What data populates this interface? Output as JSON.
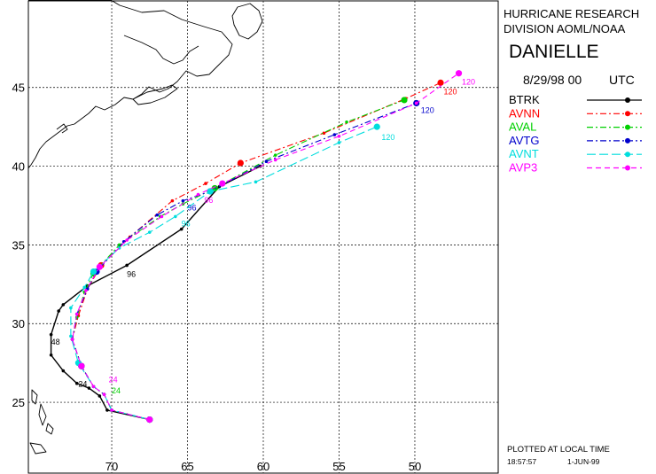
{
  "header": {
    "org_line1": "HURRICANE RESEARCH",
    "org_line2": "DIVISION AOML/NOAA",
    "storm_name": "DANIELLE",
    "date": "8/29/98 00",
    "tz": "UTC"
  },
  "footer": {
    "plotted_note": "PLOTTED AT LOCAL TIME",
    "time": "18:57:57",
    "date": "1-JUN-99"
  },
  "chart_data": {
    "type": "line",
    "title": "",
    "xlabel": "",
    "ylabel": "",
    "xlim": [
      75.5,
      44.5
    ],
    "ylim": [
      20.5,
      50.5
    ],
    "x_unit": "degrees west longitude",
    "y_unit": "degrees north latitude",
    "x_ticks": [
      70,
      65,
      60,
      55,
      50
    ],
    "y_ticks": [
      25,
      30,
      35,
      40,
      45
    ],
    "grid": true,
    "legend_position": "right-panel",
    "series": [
      {
        "name": "BTRK",
        "color": "#000000",
        "dash": "solid",
        "points": [
          [
            67.5,
            23.9
          ],
          [
            70.3,
            24.5
          ],
          [
            70.8,
            25.4
          ],
          [
            71.5,
            25.9
          ],
          [
            72.3,
            26.2
          ],
          [
            73.2,
            27.0
          ],
          [
            74.0,
            28.0
          ],
          [
            74.0,
            29.3
          ],
          [
            73.5,
            30.8
          ],
          [
            73.2,
            31.2
          ],
          [
            71.6,
            32.4
          ],
          [
            69.0,
            33.7
          ],
          [
            65.4,
            36.0
          ],
          [
            62.9,
            38.7
          ],
          [
            60.2,
            40.0
          ]
        ],
        "labels": [
          {
            "text": "24",
            "lon": 72.2,
            "lat": 26.2
          },
          {
            "text": "48",
            "lon": 74.0,
            "lat": 28.9
          },
          {
            "text": "96",
            "lon": 69.0,
            "lat": 33.2
          }
        ]
      },
      {
        "name": "AVNN",
        "color": "#ff0000",
        "dash": "dashdot",
        "points": [
          [
            67.5,
            23.9
          ],
          [
            70.0,
            24.5
          ],
          [
            70.5,
            25.5
          ],
          [
            71.2,
            26.0
          ],
          [
            72.0,
            27.3
          ],
          [
            72.6,
            29.0
          ],
          [
            72.2,
            30.5
          ],
          [
            71.6,
            32.2
          ],
          [
            70.7,
            33.7
          ],
          [
            68.8,
            35.5
          ],
          [
            66.0,
            37.8
          ],
          [
            63.8,
            38.9
          ],
          [
            61.5,
            40.2
          ],
          [
            56.0,
            42.1
          ],
          [
            50.6,
            44.3
          ],
          [
            48.3,
            45.3
          ]
        ],
        "labels": [
          {
            "text": "120",
            "lon": 48.1,
            "lat": 44.8
          }
        ]
      },
      {
        "name": "AVAL",
        "color": "#00d000",
        "dash": "dashdot",
        "points": [
          [
            67.5,
            23.9
          ],
          [
            70.0,
            24.5
          ],
          [
            70.5,
            25.5
          ],
          [
            71.2,
            26.0
          ],
          [
            72.0,
            27.3
          ],
          [
            72.6,
            29.0
          ],
          [
            72.3,
            30.4
          ],
          [
            71.8,
            32.0
          ],
          [
            71.2,
            33.2
          ],
          [
            69.5,
            35.0
          ],
          [
            66.8,
            36.8
          ],
          [
            65.3,
            37.6
          ],
          [
            63.2,
            38.6
          ],
          [
            59.2,
            40.7
          ],
          [
            54.5,
            42.8
          ],
          [
            50.7,
            44.2
          ]
        ],
        "labels": [
          {
            "text": "24",
            "lon": 70.0,
            "lat": 25.8
          }
        ]
      },
      {
        "name": "AVTG",
        "color": "#0000cc",
        "dash": "dashdot",
        "points": [
          [
            67.5,
            23.9
          ],
          [
            70.0,
            24.5
          ],
          [
            70.5,
            25.5
          ],
          [
            71.2,
            26.0
          ],
          [
            72.0,
            27.3
          ],
          [
            72.6,
            29.0
          ],
          [
            72.3,
            30.6
          ],
          [
            71.6,
            32.2
          ],
          [
            71.0,
            33.3
          ],
          [
            69.2,
            35.2
          ],
          [
            67.0,
            36.9
          ],
          [
            65.3,
            37.8
          ],
          [
            63.5,
            38.4
          ],
          [
            59.8,
            40.3
          ],
          [
            55.3,
            42.0
          ],
          [
            49.9,
            44.0
          ]
        ],
        "labels": [
          {
            "text": "120",
            "lon": 49.6,
            "lat": 43.6
          },
          {
            "text": "96",
            "lon": 65.0,
            "lat": 37.4
          }
        ]
      },
      {
        "name": "AVNT",
        "color": "#00dddd",
        "dash": "longdash",
        "points": [
          [
            67.5,
            23.9
          ],
          [
            70.0,
            24.5
          ],
          [
            70.5,
            25.5
          ],
          [
            71.2,
            26.0
          ],
          [
            72.2,
            27.5
          ],
          [
            72.7,
            29.2
          ],
          [
            72.7,
            31.0
          ],
          [
            71.8,
            32.3
          ],
          [
            71.2,
            33.3
          ],
          [
            69.5,
            34.8
          ],
          [
            67.5,
            35.8
          ],
          [
            65.8,
            36.8
          ],
          [
            63.5,
            38.4
          ],
          [
            60.5,
            39.0
          ],
          [
            55.0,
            41.5
          ],
          [
            52.5,
            42.5
          ]
        ],
        "labels": [
          {
            "text": "120",
            "lon": 52.2,
            "lat": 41.9
          },
          {
            "text": "96",
            "lon": 65.4,
            "lat": 36.4
          }
        ]
      },
      {
        "name": "AVP3",
        "color": "#ff00ff",
        "dash": "dashed",
        "points": [
          [
            67.5,
            23.9
          ],
          [
            70.0,
            24.5
          ],
          [
            70.5,
            25.5
          ],
          [
            71.2,
            26.0
          ],
          [
            72.0,
            27.3
          ],
          [
            72.6,
            29.0
          ],
          [
            72.3,
            30.6
          ],
          [
            71.7,
            32.1
          ],
          [
            70.8,
            33.6
          ],
          [
            69.0,
            35.3
          ],
          [
            66.7,
            36.8
          ],
          [
            64.3,
            38.2
          ],
          [
            62.7,
            38.9
          ],
          [
            59.2,
            40.4
          ],
          [
            55.0,
            41.9
          ],
          [
            49.9,
            44.0
          ],
          [
            47.1,
            45.9
          ]
        ],
        "labels": [
          {
            "text": "120",
            "lon": 46.9,
            "lat": 45.4
          },
          {
            "text": "96",
            "lon": 63.9,
            "lat": 37.9
          },
          {
            "text": "24",
            "lon": 70.2,
            "lat": 26.5
          }
        ]
      }
    ]
  }
}
